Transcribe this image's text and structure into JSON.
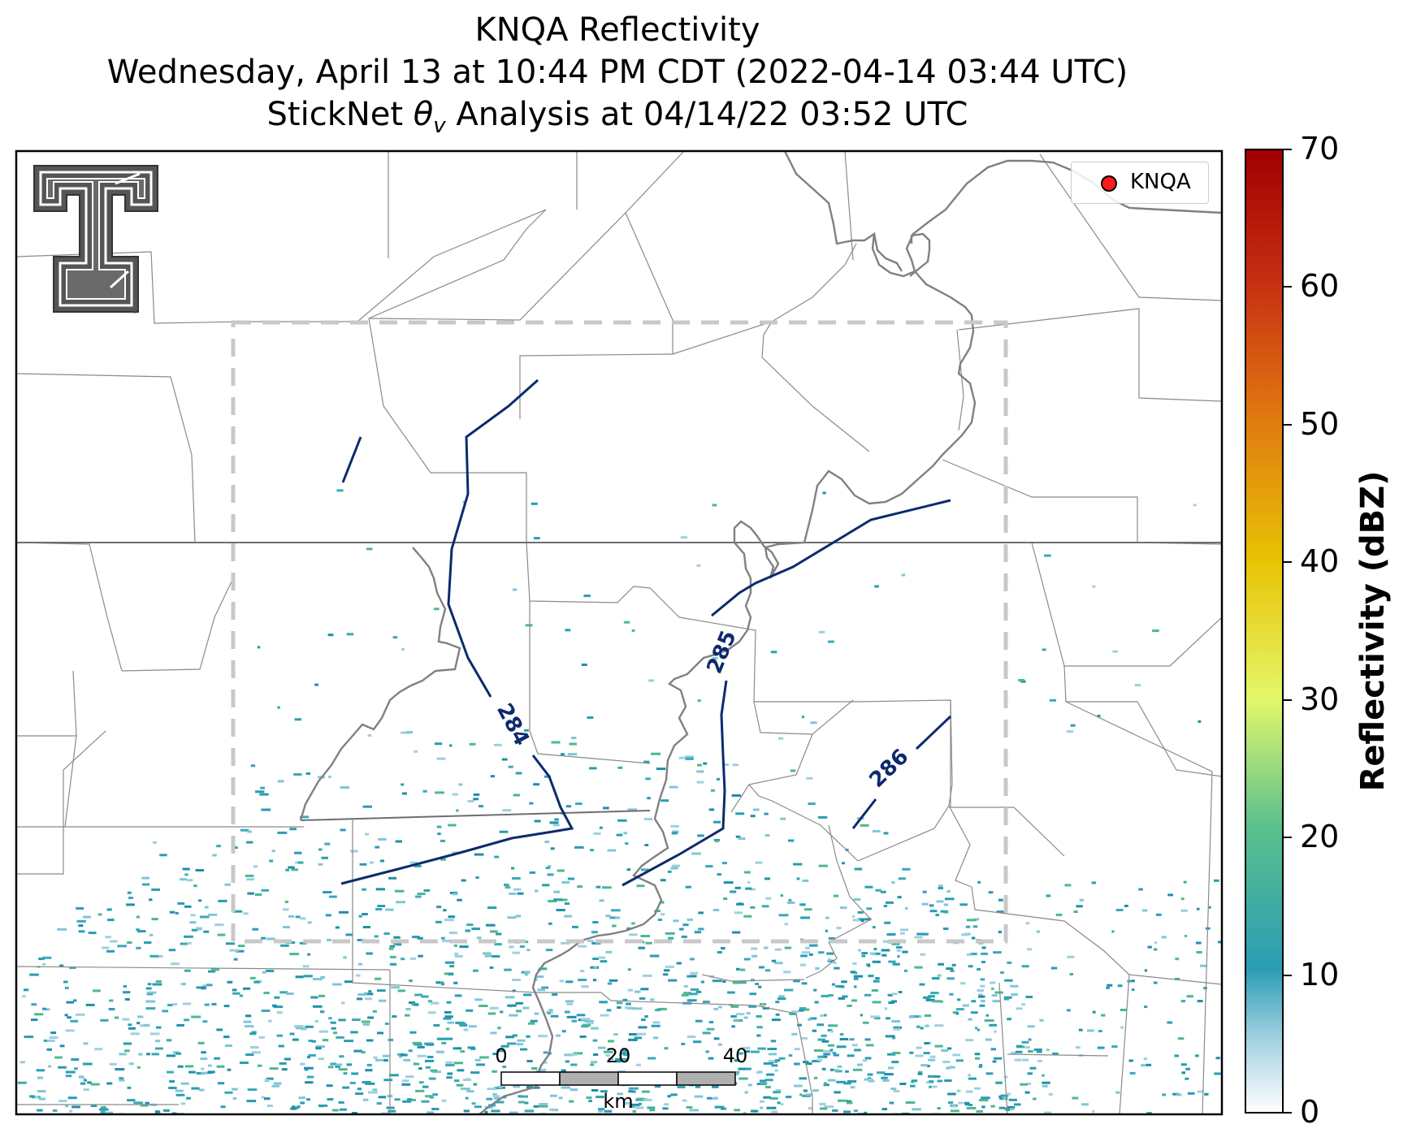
{
  "title": {
    "line1": "KNQA Reflectivity",
    "line2": "Wednesday, April 13 at 10:44 PM CDT (2022-04-14 03:44 UTC)",
    "line3_prefix": "StickNet ",
    "line3_theta": "θ",
    "line3_sub": "v",
    "line3_suffix": " Analysis at 04/14/22 03:52 UTC"
  },
  "legend": {
    "station": "KNQA",
    "marker_color": "#ff1a1a"
  },
  "colorbar": {
    "label": "Reflectivity (dBZ)",
    "min": 0,
    "max": 70,
    "ticks": [
      "0",
      "10",
      "20",
      "30",
      "40",
      "50",
      "60",
      "70"
    ]
  },
  "contours": [
    {
      "label": "284",
      "color": "#0d2a6e"
    },
    {
      "label": "285",
      "color": "#0d2a6e"
    },
    {
      "label": "286",
      "color": "#0d2a6e"
    }
  ],
  "scale_bar": {
    "labels": [
      "0",
      "20",
      "40"
    ],
    "unit": "km"
  },
  "logo": {
    "name": "Texas Tech Double T",
    "colors": [
      "#555555",
      "#ffffff"
    ]
  },
  "analysis_domain": {
    "style": "dashed",
    "color": "#c8c8c8"
  }
}
